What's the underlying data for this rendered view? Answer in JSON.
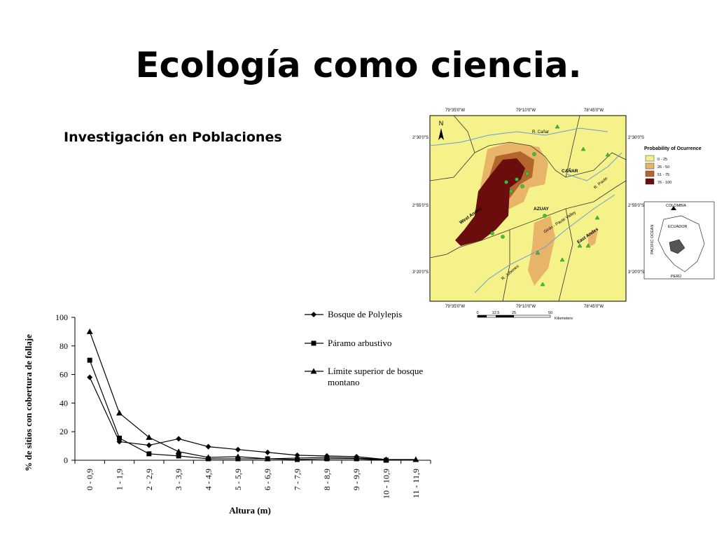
{
  "slide": {
    "title": "Ecología como ciencia.",
    "subtitle": "Investigación en Poblaciones"
  },
  "chart_data": {
    "type": "line",
    "xlabel": "Altura (m)",
    "ylabel": "% de sitios con cobertura de follaje",
    "ylim": [
      0,
      100
    ],
    "yticks": [
      0,
      20,
      40,
      60,
      80,
      100
    ],
    "categories": [
      "0 - 0,9",
      "1 - 1,9",
      "2 - 2,9",
      "3 - 3,9",
      "4 - 4,9",
      "5 - 5,9",
      "6 - 6,9",
      "7 - 7,9",
      "8 - 8,9",
      "9 - 9,9",
      "10 - 10,9",
      "11 - 11,9"
    ],
    "legend_position": "top-right",
    "series": [
      {
        "name": "Bosque de Polylepis",
        "marker": "diamond",
        "values": [
          58,
          13,
          10.5,
          15,
          9.5,
          7.5,
          5.5,
          3.5,
          3,
          2.5,
          0.5,
          null
        ]
      },
      {
        "name": "Páramo arbustivo",
        "marker": "square",
        "values": [
          70,
          15.5,
          4.5,
          3,
          1,
          1,
          1,
          0.5,
          1,
          1,
          0,
          null
        ]
      },
      {
        "name": "Límite superior de bosque montano",
        "marker": "triangle",
        "values": [
          90,
          33,
          16,
          6,
          2,
          2.5,
          1,
          1.5,
          2,
          1.5,
          0.5,
          0.5
        ]
      }
    ]
  },
  "map": {
    "top_coords": [
      "79°35'0\"W",
      "79°10'0\"W",
      "78°45'0\"W"
    ],
    "bottom_coords": [
      "79°35'0\"W",
      "79°10'0\"W",
      "78°45'0\"W"
    ],
    "left_coords": [
      "2°30'0\"S",
      "2°55'0\"S",
      "3°20'0\"S"
    ],
    "right_coords": [
      "2°30'0\"S",
      "2°55'0\"S",
      "3°20'0\"S"
    ],
    "north_label": "N",
    "labels": {
      "canar": "CAÑAR",
      "azuay": "AZUAY",
      "west_andes": "West Andes",
      "east_andes": "East Andes",
      "giron": "Girón - Paute Valley",
      "r_canar": "R. Cañar",
      "r_paute": "R. Paute",
      "r_jubones": "R. Jubones"
    },
    "scale_labels": [
      "0",
      "12.5",
      "25",
      "50",
      "Kilometers"
    ],
    "legend_title": "Probability of Ocurrence",
    "legend": [
      {
        "label": "0 - 25",
        "color": "#f6f28a"
      },
      {
        "label": "26 - 50",
        "color": "#e8b46a"
      },
      {
        "label": "51 - 75",
        "color": "#b3672d"
      },
      {
        "label": "76 - 100",
        "color": "#6b0d0d"
      }
    ],
    "inset": {
      "colombia": "COLOMBIA",
      "ecuador": "ECUADOR",
      "pacific": "PACIFIC OCEAN",
      "peru": "PERÚ"
    }
  }
}
